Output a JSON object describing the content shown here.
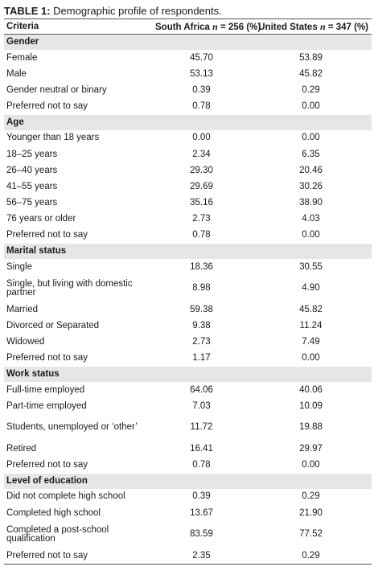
{
  "caption": {
    "label": "TABLE 1:",
    "text": "Demographic profile of respondents."
  },
  "columns": {
    "criteria": "Criteria",
    "sa": {
      "name": "South Africa",
      "n_symbol": "n",
      "n_rest": " = 256 (%)"
    },
    "us": {
      "name": "United States",
      "n_symbol": "n",
      "n_rest": " = 347 (%)"
    }
  },
  "rows": [
    {
      "type": "section",
      "label": "Gender"
    },
    {
      "type": "row",
      "label": "Female",
      "sa": "45.70",
      "us": "53.89"
    },
    {
      "type": "row",
      "label": "Male",
      "sa": "53.13",
      "us": "45.82"
    },
    {
      "type": "row",
      "label": "Gender neutral or binary",
      "sa": "0.39",
      "us": "0.29"
    },
    {
      "type": "row",
      "label": "Preferred not to say",
      "sa": "0.78",
      "us": "0.00"
    },
    {
      "type": "section",
      "label": "Age"
    },
    {
      "type": "row",
      "label": "Younger than 18 years",
      "sa": "0.00",
      "us": "0.00"
    },
    {
      "type": "row",
      "label": "18–25 years",
      "sa": "2.34",
      "us": "6.35"
    },
    {
      "type": "row",
      "label": "26–40 years",
      "sa": "29.30",
      "us": "20.46"
    },
    {
      "type": "row",
      "label": "41–55 years",
      "sa": "29.69",
      "us": "30.26"
    },
    {
      "type": "row",
      "label": "56–75 years",
      "sa": "35.16",
      "us": "38.90"
    },
    {
      "type": "row",
      "label": "76 years or older",
      "sa": "2.73",
      "us": "4.03"
    },
    {
      "type": "row",
      "label": "Preferred not to say",
      "sa": "0.78",
      "us": "0.00"
    },
    {
      "type": "section",
      "label": "Marital status"
    },
    {
      "type": "row",
      "label": "Single",
      "sa": "18.36",
      "us": "30.55"
    },
    {
      "type": "tall",
      "label": "Single, but living with domestic partner",
      "sa": "8.98",
      "us": "4.90"
    },
    {
      "type": "row",
      "label": "Married",
      "sa": "59.38",
      "us": "45.82"
    },
    {
      "type": "row",
      "label": "Divorced or Separated",
      "sa": "9.38",
      "us": "11.24"
    },
    {
      "type": "row",
      "label": "Widowed",
      "sa": "2.73",
      "us": "7.49"
    },
    {
      "type": "row",
      "label": "Preferred not to say",
      "sa": "1.17",
      "us": "0.00"
    },
    {
      "type": "section",
      "label": "Work status"
    },
    {
      "type": "row",
      "label": "Full-time employed",
      "sa": "64.06",
      "us": "40.06"
    },
    {
      "type": "row",
      "label": "Part-time employed",
      "sa": "7.03",
      "us": "10.09"
    },
    {
      "type": "tall",
      "label": "Students, unemployed or ‘other’",
      "sa": "11.72",
      "us": "19.88"
    },
    {
      "type": "row",
      "label": "Retired",
      "sa": "16.41",
      "us": "29.97"
    },
    {
      "type": "row",
      "label": "Preferred not to say",
      "sa": "0.78",
      "us": "0.00"
    },
    {
      "type": "section",
      "label": "Level of education"
    },
    {
      "type": "row",
      "label": "Did not complete high school",
      "sa": "0.39",
      "us": "0.29"
    },
    {
      "type": "row",
      "label": "Completed high school",
      "sa": "13.67",
      "us": "21.90"
    },
    {
      "type": "tall",
      "label": "Completed a post-school qualification",
      "sa": "83.59",
      "us": "77.52"
    },
    {
      "type": "row",
      "label": "Preferred not to say",
      "sa": "2.35",
      "us": "0.29"
    }
  ]
}
